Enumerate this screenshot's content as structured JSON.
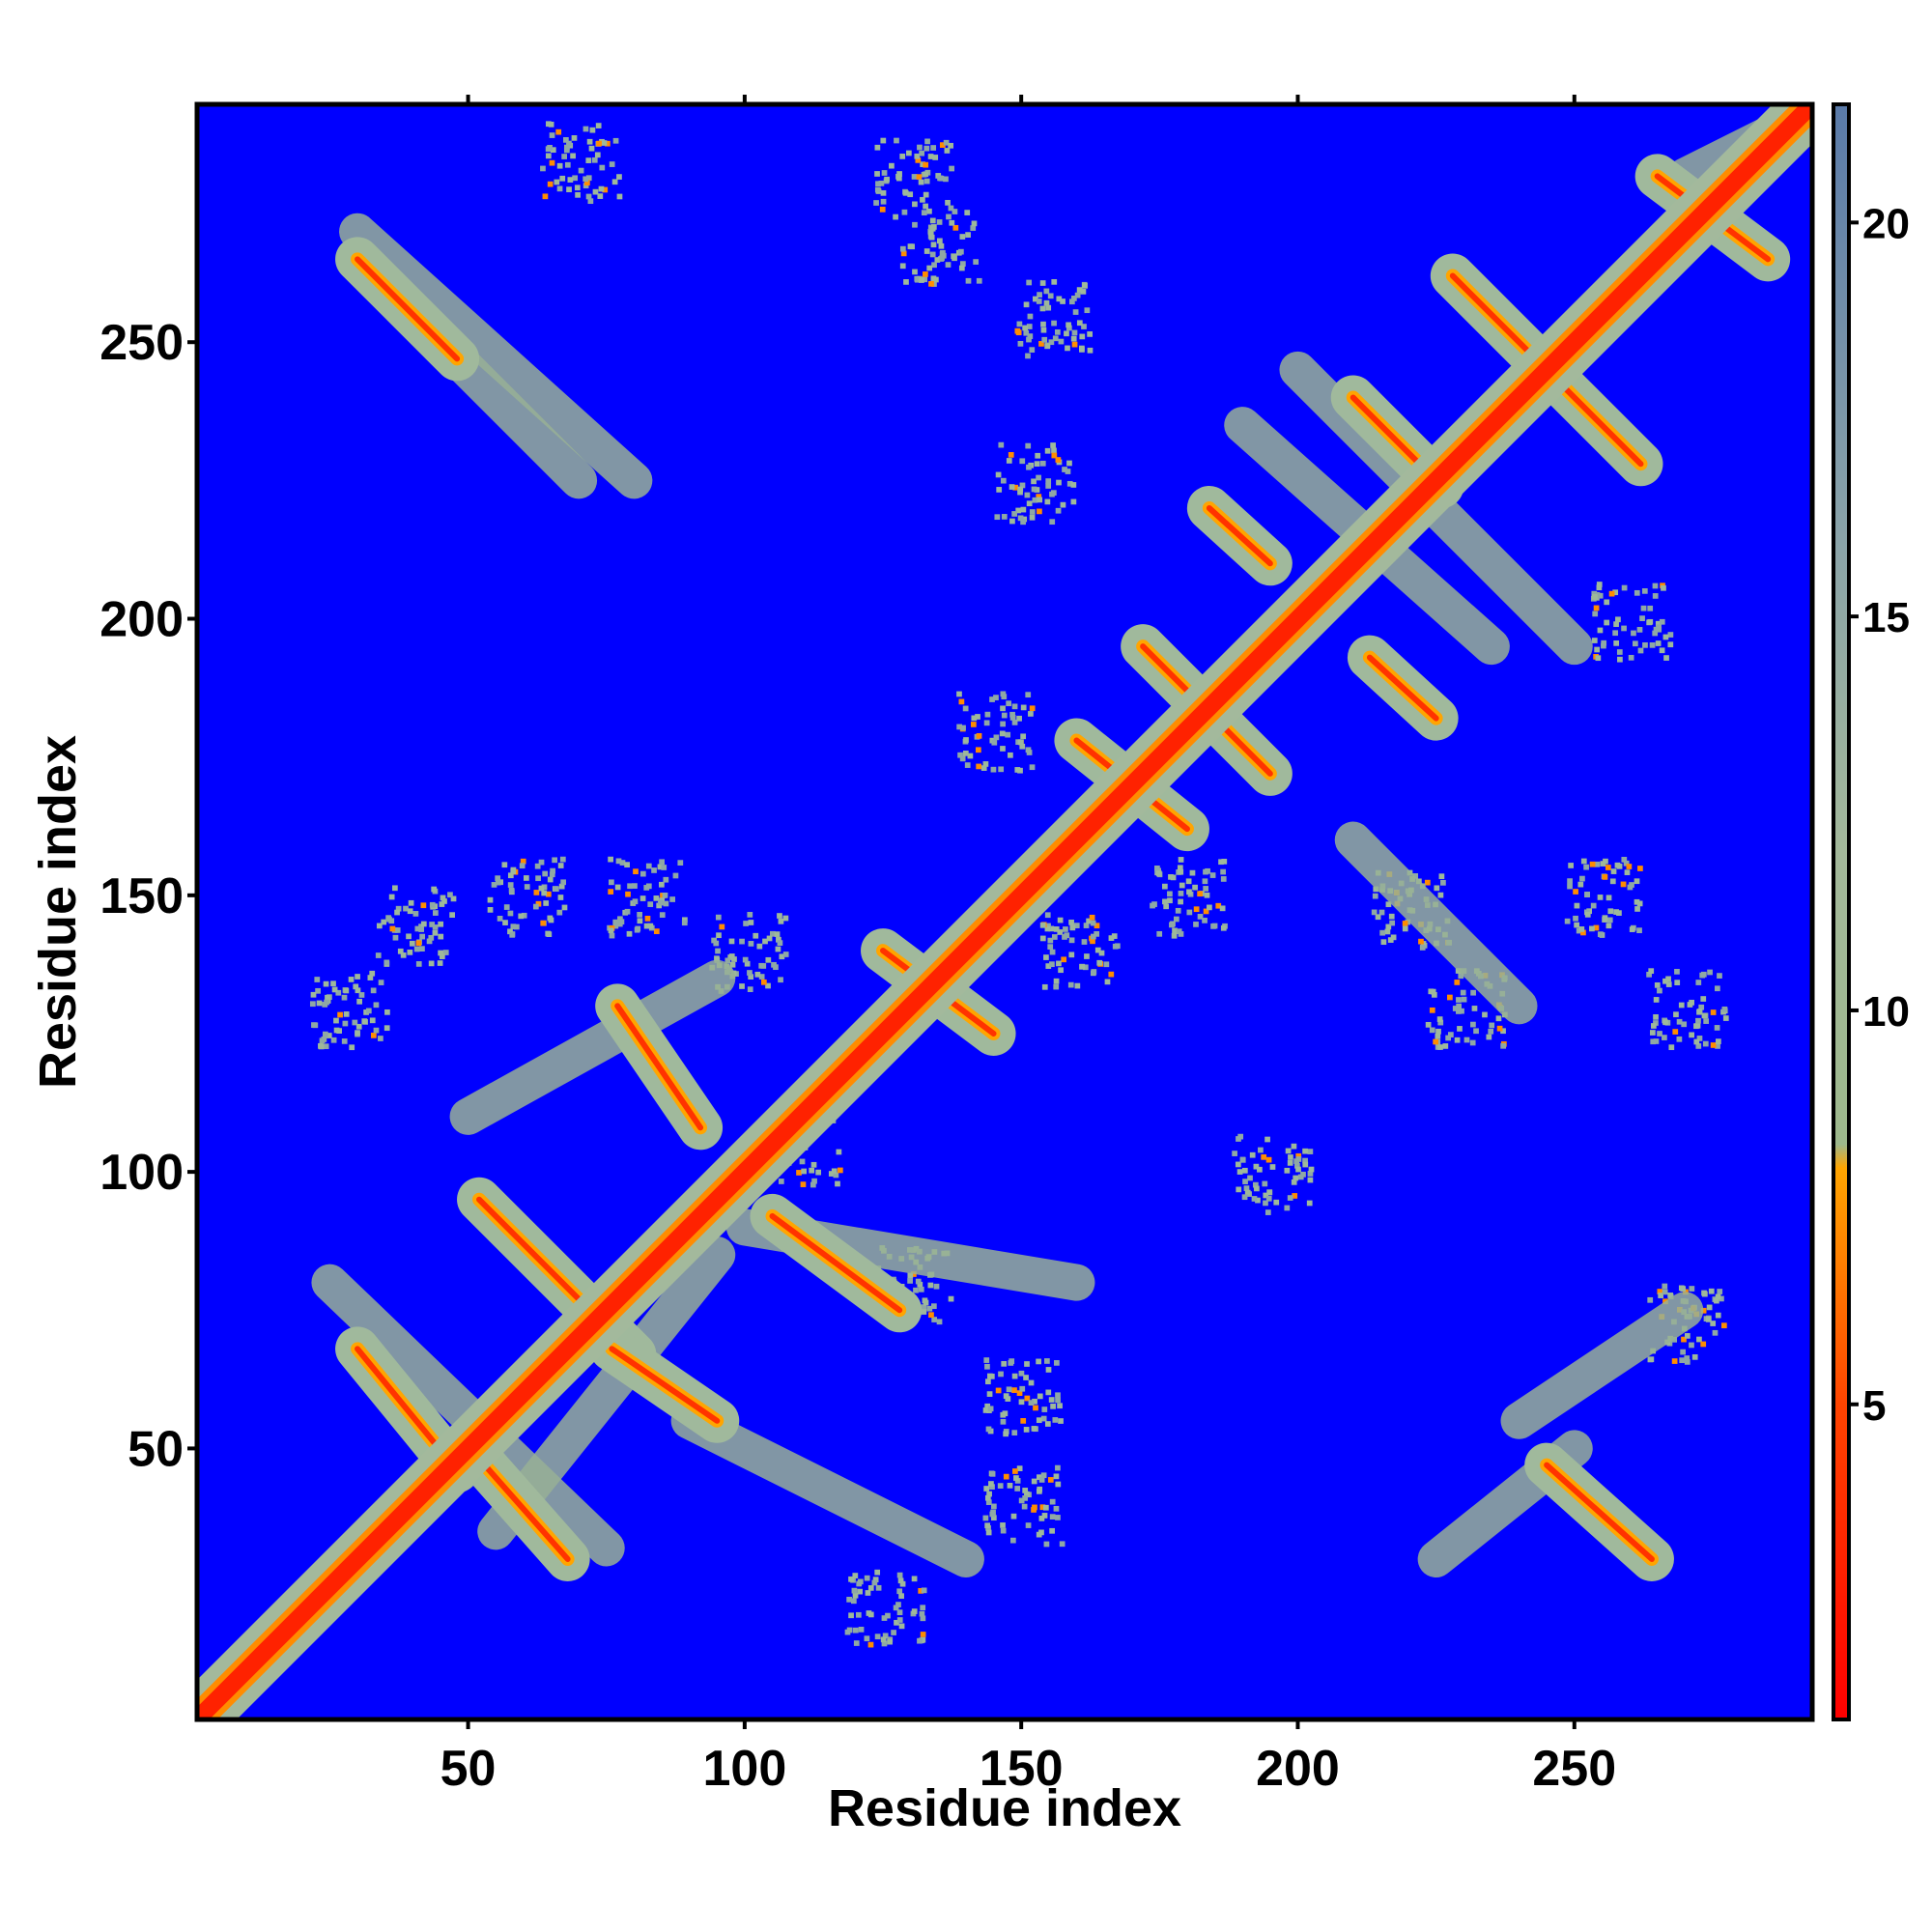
{
  "chart_data": {
    "type": "heatmap",
    "title": "",
    "xlabel": "Residue index",
    "ylabel": "Residue index",
    "xlim": [
      1,
      293
    ],
    "ylim": [
      1,
      293
    ],
    "x_ticks": [
      50,
      100,
      150,
      200,
      250
    ],
    "y_ticks": [
      50,
      100,
      150,
      200,
      250
    ],
    "colorbar": {
      "range": [
        1,
        21.5
      ],
      "ticks": [
        5,
        10,
        15,
        20
      ],
      "colors": [
        {
          "value": 1,
          "color": "#ff0000"
        },
        {
          "value": 5,
          "color": "#ff4400"
        },
        {
          "value": 8,
          "color": "#ffa500"
        },
        {
          "value": 8.3,
          "color": "#9db88c"
        },
        {
          "value": 12,
          "color": "#a3b89a"
        },
        {
          "value": 16,
          "color": "#8aa3a8"
        },
        {
          "value": 21.5,
          "color": "#5a7aa8"
        }
      ]
    },
    "background_color": "#0000ff",
    "background_value": "> 21.5",
    "diagonal_band_color": "#ff2200",
    "contact_bands": [
      {
        "from": [
          30,
          68
        ],
        "to": [
          48,
          46
        ]
      },
      {
        "from": [
          52,
          95
        ],
        "to": [
          80,
          67
        ]
      },
      {
        "from": [
          53,
          47
        ],
        "to": [
          68,
          30
        ]
      },
      {
        "from": [
          77,
          130
        ],
        "to": [
          92,
          108
        ]
      },
      {
        "from": [
          76,
          68
        ],
        "to": [
          95,
          55
        ]
      },
      {
        "from": [
          105,
          92
        ],
        "to": [
          128,
          75
        ]
      },
      {
        "from": [
          30,
          265
        ],
        "to": [
          48,
          247
        ]
      },
      {
        "from": [
          125,
          140
        ],
        "to": [
          145,
          125
        ]
      },
      {
        "from": [
          160,
          178
        ],
        "to": [
          180,
          162
        ]
      },
      {
        "from": [
          172,
          195
        ],
        "to": [
          195,
          172
        ]
      },
      {
        "from": [
          184,
          220
        ],
        "to": [
          195,
          210
        ]
      },
      {
        "from": [
          210,
          240
        ],
        "to": [
          226,
          224
        ]
      },
      {
        "from": [
          228,
          262
        ],
        "to": [
          262,
          228
        ]
      },
      {
        "from": [
          213,
          193
        ],
        "to": [
          225,
          182
        ]
      },
      {
        "from": [
          245,
          47
        ],
        "to": [
          264,
          30
        ]
      },
      {
        "from": [
          265,
          280
        ],
        "to": [
          285,
          265
        ]
      }
    ],
    "secondary_bands": [
      {
        "from": [
          25,
          80
        ],
        "to": [
          75,
          32
        ]
      },
      {
        "from": [
          55,
          35
        ],
        "to": [
          95,
          85
        ]
      },
      {
        "from": [
          50,
          110
        ],
        "to": [
          95,
          135
        ]
      },
      {
        "from": [
          30,
          270
        ],
        "to": [
          80,
          225
        ]
      },
      {
        "from": [
          40,
          255
        ],
        "to": [
          70,
          225
        ]
      },
      {
        "from": [
          90,
          55
        ],
        "to": [
          140,
          30
        ]
      },
      {
        "from": [
          100,
          90
        ],
        "to": [
          160,
          80
        ]
      },
      {
        "from": [
          190,
          235
        ],
        "to": [
          235,
          195
        ]
      },
      {
        "from": [
          200,
          245
        ],
        "to": [
          250,
          195
        ]
      },
      {
        "from": [
          210,
          160
        ],
        "to": [
          240,
          130
        ]
      },
      {
        "from": [
          240,
          55
        ],
        "to": [
          270,
          75
        ]
      },
      {
        "from": [
          225,
          30
        ],
        "to": [
          250,
          50
        ]
      },
      {
        "from": [
          270,
          280
        ],
        "to": [
          290,
          290
        ]
      }
    ],
    "speckle_clusters": [
      [
        70,
        283
      ],
      [
        130,
        280
      ],
      [
        135,
        268
      ],
      [
        155,
        255
      ],
      [
        152,
        225
      ],
      [
        60,
        150
      ],
      [
        82,
        150
      ],
      [
        40,
        145
      ],
      [
        28,
        130
      ],
      [
        100,
        140
      ],
      [
        160,
        140
      ],
      [
        180,
        150
      ],
      [
        220,
        148
      ],
      [
        255,
        150
      ],
      [
        270,
        130
      ],
      [
        150,
        60
      ],
      [
        150,
        40
      ],
      [
        125,
        22
      ],
      [
        130,
        80
      ],
      [
        110,
        105
      ],
      [
        230,
        130
      ],
      [
        195,
        100
      ],
      [
        270,
        73
      ],
      [
        260,
        200
      ],
      [
        145,
        180
      ]
    ]
  }
}
